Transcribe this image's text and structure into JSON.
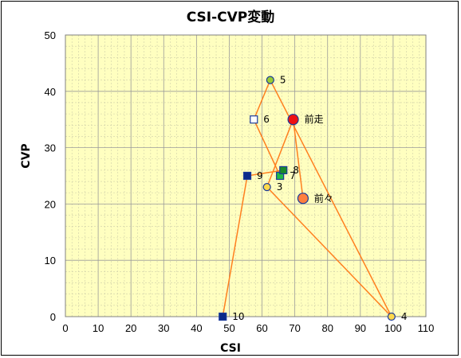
{
  "chart_data": {
    "type": "scatter",
    "title": "CSI-CVP変動",
    "xlabel": "CSI",
    "ylabel": "CVP",
    "xlim": [
      0,
      110
    ],
    "ylim": [
      0,
      50
    ],
    "xticks": [
      0,
      10,
      20,
      30,
      40,
      50,
      60,
      70,
      80,
      90,
      100,
      110
    ],
    "yticks": [
      0,
      10,
      20,
      30,
      40,
      50
    ],
    "grid": true,
    "colors": {
      "plot_bg": "#ffffc0",
      "grid": "#b0b0b0",
      "line": "#ff7f1f"
    },
    "points": [
      {
        "label": "前々",
        "x": 72.5,
        "y": 21,
        "marker": "circle-large",
        "fill": "#ff7f3f"
      },
      {
        "label": "前走",
        "x": 69.5,
        "y": 35,
        "marker": "circle-large",
        "fill": "#ee1111"
      },
      {
        "label": "3",
        "x": 61.5,
        "y": 23,
        "marker": "circle",
        "fill": "#ffd84a"
      },
      {
        "label": "4",
        "x": 99.5,
        "y": 0,
        "marker": "circle",
        "fill": "#ffd84a"
      },
      {
        "label": "5",
        "x": 62.5,
        "y": 42,
        "marker": "circle",
        "fill": "#9acd32"
      },
      {
        "label": "6",
        "x": 57.5,
        "y": 35,
        "marker": "square",
        "fill": "#ffffff"
      },
      {
        "label": "7",
        "x": 65.5,
        "y": 25,
        "marker": "square",
        "fill": "#22bb44"
      },
      {
        "label": "8",
        "x": 66.5,
        "y": 26,
        "marker": "square",
        "fill": "#1a8a2a"
      },
      {
        "label": "9",
        "x": 55.5,
        "y": 25,
        "marker": "square",
        "fill": "#0a2a8a"
      },
      {
        "label": "10",
        "x": 48.0,
        "y": 0,
        "marker": "square",
        "fill": "#0a2a8a"
      }
    ],
    "path": [
      "前々",
      "前走",
      "3",
      "4",
      "5",
      "6",
      "7",
      "8",
      "9",
      "10"
    ]
  }
}
